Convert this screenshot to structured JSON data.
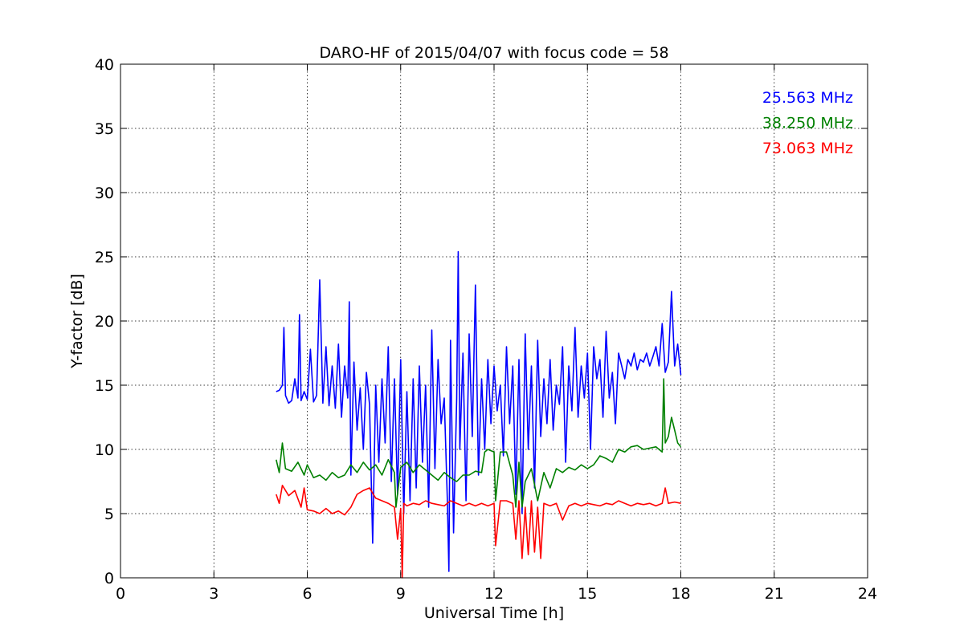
{
  "chart_data": {
    "type": "line",
    "title": "DARO-HF of 2015/04/07 with focus code = 58",
    "xlabel": "Universal Time [h]",
    "ylabel": "Y-factor [dB]",
    "xlim": [
      0,
      24
    ],
    "ylim": [
      0,
      40
    ],
    "xticks": [
      0,
      3,
      6,
      9,
      12,
      15,
      18,
      21,
      24
    ],
    "yticks": [
      0,
      5,
      10,
      15,
      20,
      25,
      30,
      35,
      40
    ],
    "grid": true,
    "legend_position": "top-right",
    "series": [
      {
        "name": "25.563 MHz",
        "color": "#0000ff",
        "x": [
          5.0,
          5.1,
          5.2,
          5.25,
          5.3,
          5.4,
          5.5,
          5.6,
          5.7,
          5.75,
          5.8,
          5.9,
          6.0,
          6.1,
          6.2,
          6.3,
          6.4,
          6.5,
          6.6,
          6.7,
          6.8,
          6.9,
          7.0,
          7.1,
          7.2,
          7.3,
          7.35,
          7.4,
          7.5,
          7.6,
          7.7,
          7.8,
          7.9,
          8.0,
          8.1,
          8.2,
          8.3,
          8.4,
          8.5,
          8.6,
          8.7,
          8.8,
          8.9,
          9.0,
          9.1,
          9.2,
          9.3,
          9.4,
          9.5,
          9.6,
          9.7,
          9.8,
          9.9,
          10.0,
          10.1,
          10.2,
          10.3,
          10.4,
          10.5,
          10.55,
          10.6,
          10.7,
          10.8,
          10.85,
          10.9,
          11.0,
          11.1,
          11.2,
          11.3,
          11.4,
          11.5,
          11.6,
          11.7,
          11.8,
          11.9,
          12.0,
          12.1,
          12.2,
          12.3,
          12.4,
          12.5,
          12.6,
          12.7,
          12.8,
          12.9,
          13.0,
          13.1,
          13.2,
          13.3,
          13.4,
          13.5,
          13.6,
          13.7,
          13.8,
          13.9,
          14.0,
          14.1,
          14.2,
          14.3,
          14.4,
          14.5,
          14.6,
          14.7,
          14.8,
          14.9,
          15.0,
          15.1,
          15.2,
          15.3,
          15.4,
          15.5,
          15.6,
          15.7,
          15.8,
          15.9,
          16.0,
          16.1,
          16.2,
          16.3,
          16.4,
          16.5,
          16.6,
          16.7,
          16.8,
          16.9,
          17.0,
          17.1,
          17.2,
          17.3,
          17.4,
          17.5,
          17.6,
          17.7,
          17.8,
          17.9,
          18.0
        ],
        "y": [
          14.5,
          14.6,
          15.0,
          19.5,
          14.2,
          13.6,
          13.8,
          15.5,
          14.0,
          20.5,
          13.8,
          14.5,
          13.9,
          17.8,
          13.7,
          14.2,
          23.2,
          13.6,
          18.0,
          13.4,
          16.5,
          13.2,
          18.2,
          12.5,
          16.5,
          14.0,
          21.5,
          8.0,
          16.8,
          11.5,
          14.8,
          10.0,
          16.0,
          13.5,
          2.7,
          15.0,
          9.0,
          15.5,
          10.5,
          18.0,
          7.5,
          15.5,
          6.5,
          17.0,
          5.0,
          14.5,
          6.0,
          15.5,
          7.0,
          16.5,
          9.0,
          15.0,
          5.5,
          19.3,
          8.5,
          17.0,
          12.0,
          14.0,
          6.0,
          0.5,
          18.5,
          3.5,
          14.0,
          25.4,
          10.0,
          17.5,
          6.0,
          19.0,
          11.0,
          22.8,
          8.0,
          15.5,
          10.0,
          17.0,
          12.0,
          16.5,
          13.0,
          15.0,
          9.5,
          18.0,
          12.0,
          16.5,
          6.5,
          17.0,
          5.0,
          19.0,
          10.0,
          16.5,
          7.0,
          18.5,
          11.0,
          15.5,
          12.0,
          17.0,
          11.5,
          15.0,
          13.5,
          18.0,
          9.0,
          16.5,
          13.0,
          19.5,
          12.5,
          16.5,
          14.0,
          17.5,
          10.0,
          18.0,
          15.5,
          17.0,
          12.5,
          19.2,
          14.0,
          16.0,
          12.0,
          17.5,
          16.5,
          15.5,
          17.0,
          16.5,
          17.5,
          16.2,
          17.0,
          16.8,
          17.5,
          16.5,
          17.2,
          18.0,
          16.5,
          19.8,
          16.0,
          16.8,
          22.3,
          16.5,
          18.2,
          15.8
        ],
        "label_color": "#0000ff"
      },
      {
        "name": "38.250 MHz",
        "color": "#008000",
        "x": [
          5.0,
          5.1,
          5.2,
          5.3,
          5.5,
          5.7,
          5.9,
          6.0,
          6.2,
          6.4,
          6.6,
          6.8,
          7.0,
          7.2,
          7.4,
          7.6,
          7.8,
          8.0,
          8.2,
          8.4,
          8.6,
          8.8,
          8.85,
          9.0,
          9.2,
          9.4,
          9.6,
          9.8,
          10.0,
          10.2,
          10.4,
          10.6,
          10.8,
          11.0,
          11.2,
          11.4,
          11.6,
          11.7,
          11.8,
          12.0,
          12.05,
          12.2,
          12.4,
          12.6,
          12.7,
          12.8,
          12.9,
          13.0,
          13.2,
          13.4,
          13.6,
          13.8,
          14.0,
          14.2,
          14.4,
          14.6,
          14.8,
          15.0,
          15.2,
          15.4,
          15.6,
          15.8,
          16.0,
          16.2,
          16.4,
          16.6,
          16.8,
          17.0,
          17.2,
          17.4,
          17.45,
          17.5,
          17.6,
          17.7,
          17.8,
          17.9,
          18.0
        ],
        "y": [
          9.2,
          8.2,
          10.5,
          8.5,
          8.3,
          9.0,
          8.0,
          8.8,
          7.8,
          8.0,
          7.6,
          8.2,
          7.8,
          8.0,
          8.8,
          8.2,
          9.0,
          8.4,
          8.8,
          8.0,
          9.2,
          8.2,
          5.5,
          8.6,
          9.0,
          8.2,
          8.8,
          8.4,
          8.0,
          7.6,
          8.2,
          7.8,
          7.5,
          8.0,
          8.0,
          8.3,
          8.2,
          9.8,
          10.0,
          9.8,
          6.0,
          9.8,
          9.8,
          8.0,
          5.5,
          9.0,
          5.5,
          7.5,
          8.5,
          6.0,
          8.2,
          7.0,
          8.5,
          8.2,
          8.6,
          8.4,
          8.8,
          8.5,
          8.8,
          9.5,
          9.3,
          9.0,
          10.0,
          9.8,
          10.2,
          10.3,
          10.0,
          10.1,
          10.2,
          9.8,
          15.5,
          10.5,
          11.0,
          12.5,
          11.5,
          10.5,
          10.2
        ],
        "label_color": "#008000"
      },
      {
        "name": "73.063 MHz",
        "color": "#ff0000",
        "x": [
          5.0,
          5.1,
          5.2,
          5.4,
          5.6,
          5.8,
          5.9,
          6.0,
          6.2,
          6.4,
          6.6,
          6.8,
          7.0,
          7.2,
          7.4,
          7.6,
          7.8,
          8.0,
          8.2,
          8.4,
          8.6,
          8.8,
          8.9,
          9.0,
          9.05,
          9.1,
          9.2,
          9.4,
          9.6,
          9.8,
          10.0,
          10.2,
          10.4,
          10.6,
          10.8,
          11.0,
          11.2,
          11.4,
          11.6,
          11.8,
          12.0,
          12.05,
          12.2,
          12.4,
          12.6,
          12.7,
          12.8,
          12.9,
          13.0,
          13.1,
          13.2,
          13.3,
          13.4,
          13.5,
          13.6,
          13.8,
          14.0,
          14.2,
          14.4,
          14.6,
          14.8,
          15.0,
          15.2,
          15.4,
          15.6,
          15.8,
          16.0,
          16.2,
          16.4,
          16.6,
          16.8,
          17.0,
          17.2,
          17.4,
          17.5,
          17.6,
          17.8,
          18.0
        ],
        "y": [
          6.5,
          5.8,
          7.2,
          6.4,
          6.8,
          5.5,
          7.0,
          5.3,
          5.2,
          5.0,
          5.4,
          5.0,
          5.2,
          4.9,
          5.5,
          6.5,
          6.8,
          7.0,
          6.2,
          6.0,
          5.8,
          5.5,
          3.0,
          5.4,
          0.0,
          5.8,
          5.6,
          5.8,
          5.7,
          6.0,
          5.8,
          5.7,
          5.6,
          6.0,
          5.8,
          5.6,
          5.8,
          5.6,
          5.8,
          5.6,
          5.8,
          2.5,
          6.0,
          6.0,
          5.8,
          3.0,
          6.0,
          1.5,
          5.5,
          1.8,
          6.0,
          2.0,
          5.5,
          1.5,
          5.8,
          5.6,
          5.8,
          4.5,
          5.6,
          5.8,
          5.6,
          5.8,
          5.7,
          5.6,
          5.8,
          5.7,
          6.0,
          5.8,
          5.6,
          5.8,
          5.7,
          5.8,
          5.6,
          5.8,
          7.0,
          5.8,
          5.9,
          5.8
        ],
        "label_color": "#ff0000"
      }
    ]
  }
}
